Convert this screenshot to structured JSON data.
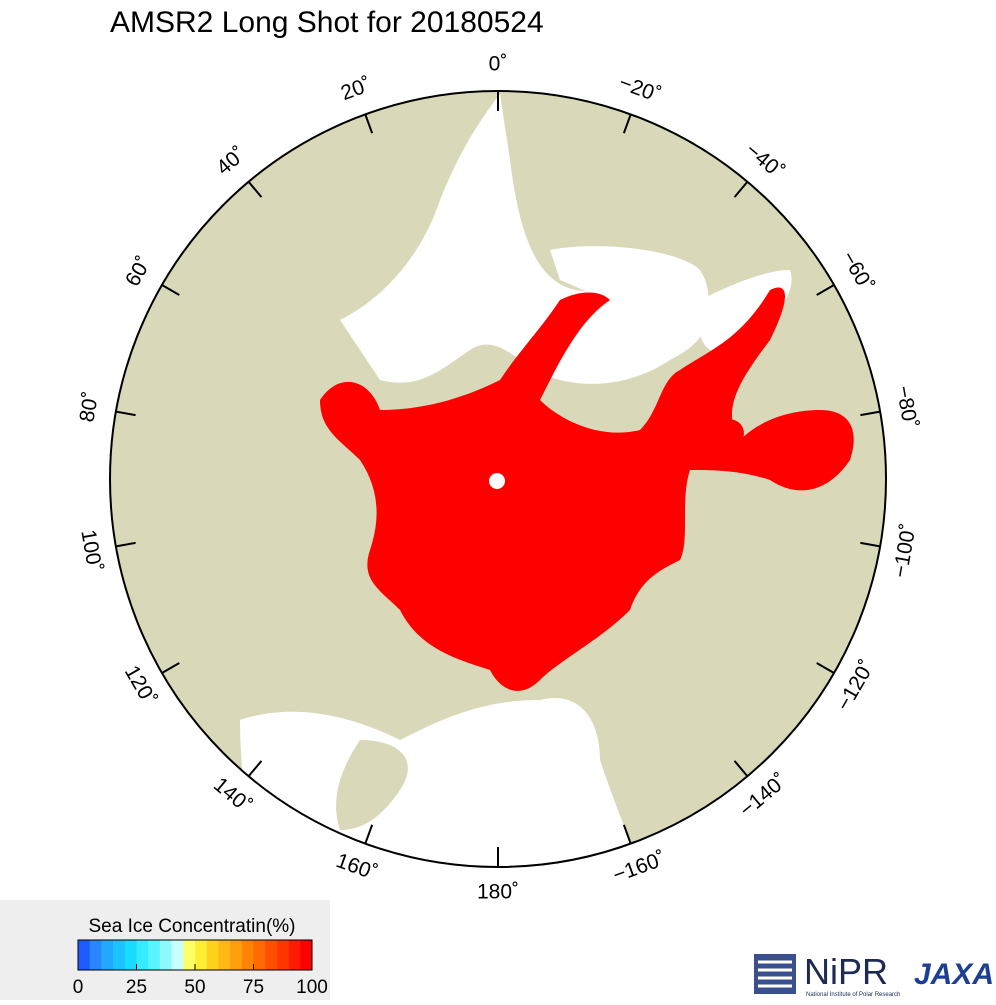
{
  "title": "AMSR2 Long Shot for 20180524",
  "map": {
    "longitude_labels": [
      {
        "value": 0,
        "label": "0˚"
      },
      {
        "value": 20,
        "label": "20˚"
      },
      {
        "value": 40,
        "label": "40˚"
      },
      {
        "value": 60,
        "label": "60˚"
      },
      {
        "value": 80,
        "label": "80˚"
      },
      {
        "value": 100,
        "label": "100˚"
      },
      {
        "value": 120,
        "label": "120˚"
      },
      {
        "value": 140,
        "label": "140˚"
      },
      {
        "value": 160,
        "label": "160˚"
      },
      {
        "value": 180,
        "label": "180˚"
      },
      {
        "value": -20,
        "label": "−20˚"
      },
      {
        "value": -40,
        "label": "−40˚"
      },
      {
        "value": -60,
        "label": "−60˚"
      },
      {
        "value": -80,
        "label": "−80˚"
      },
      {
        "value": -100,
        "label": "−100˚"
      },
      {
        "value": -120,
        "label": "−120˚"
      },
      {
        "value": -140,
        "label": "−140˚"
      },
      {
        "value": -160,
        "label": "−160˚"
      }
    ]
  },
  "colorbar": {
    "title": "Sea Ice Concentratin(%)",
    "range": [
      0,
      100
    ],
    "ticks": [
      0,
      25,
      50,
      75,
      100
    ],
    "colors": [
      "#1e5cff",
      "#2a86ff",
      "#22a8ff",
      "#1cc4ff",
      "#18dcff",
      "#34ecff",
      "#5af4ff",
      "#8cfaff",
      "#c8ffff",
      "#ffff66",
      "#ffee33",
      "#ffd21c",
      "#ffb814",
      "#ff9e0c",
      "#ff8406",
      "#ff6a02",
      "#ff5000",
      "#ff3600",
      "#ff1c00",
      "#ff0000"
    ]
  },
  "logos": {
    "nipr": "NiPR",
    "nipr_subtitle": "National Institute of Polar Research",
    "jaxa": "JAXA"
  }
}
